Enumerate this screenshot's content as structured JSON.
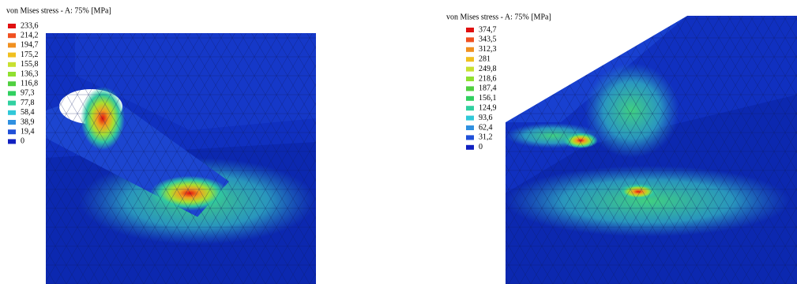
{
  "panels": [
    {
      "title": "von Mises stress - A: 75% [MPa]",
      "legend": [
        "233,6",
        "214,2",
        "194,7",
        "175,2",
        "155,8",
        "136,3",
        "116,8",
        "97,3",
        "77,8",
        "58,4",
        "38,9",
        "19,4",
        "0"
      ]
    },
    {
      "title": "von Mises stress - A: 75% [MPa]",
      "legend": [
        "374,7",
        "343,5",
        "312,3",
        "281",
        "249,8",
        "218,6",
        "187,4",
        "156,1",
        "124,9",
        "93,6",
        "62,4",
        "31,2",
        "0"
      ]
    }
  ]
}
